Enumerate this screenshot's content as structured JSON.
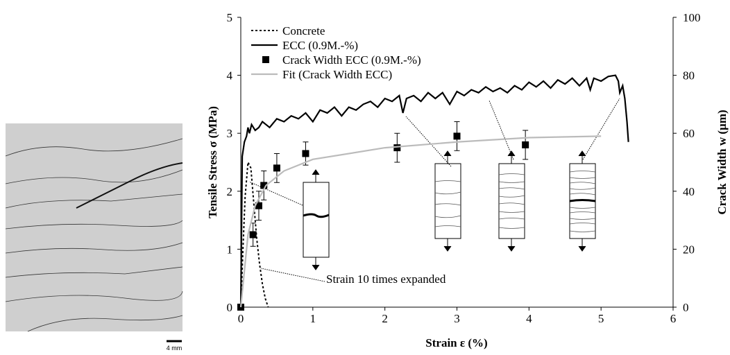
{
  "chart_data": {
    "type": "line",
    "xlabel": "Strain ε (%)",
    "ylabel": "Tensile Stress σ (MPa)",
    "y2label": "Crack Width w (µm)",
    "xlim": [
      0,
      6
    ],
    "xticks": [
      0,
      1,
      2,
      3,
      4,
      5,
      6
    ],
    "ylim": [
      0,
      5
    ],
    "yticks": [
      0,
      1,
      2,
      3,
      4,
      5
    ],
    "y2lim": [
      0,
      100
    ],
    "y2ticks": [
      0,
      20,
      40,
      60,
      80,
      100
    ],
    "legend": "upper left",
    "annotation": "Strain 10 times expanded",
    "scale_bar": "4 mm",
    "series": [
      {
        "name": "Concrete",
        "color": "#000000",
        "style": "dotted",
        "x": [
          0,
          0.03,
          0.06,
          0.1,
          0.14,
          0.18,
          0.22,
          0.26,
          0.3,
          0.34,
          0.38
        ],
        "values": [
          0,
          1.0,
          1.9,
          2.5,
          2.4,
          1.8,
          1.2,
          0.75,
          0.4,
          0.15,
          0
        ]
      },
      {
        "name": "ECC (0.9M.-%)",
        "color": "#000000",
        "style": "solid",
        "x": [
          0,
          0.02,
          0.05,
          0.08,
          0.1,
          0.12,
          0.15,
          0.2,
          0.25,
          0.3,
          0.4,
          0.5,
          0.6,
          0.7,
          0.8,
          0.9,
          1.0,
          1.1,
          1.2,
          1.3,
          1.4,
          1.5,
          1.6,
          1.7,
          1.8,
          1.9,
          2.0,
          2.1,
          2.2,
          2.25,
          2.3,
          2.4,
          2.5,
          2.6,
          2.7,
          2.8,
          2.9,
          3.0,
          3.1,
          3.2,
          3.3,
          3.4,
          3.5,
          3.6,
          3.7,
          3.8,
          3.9,
          4.0,
          4.1,
          4.2,
          4.3,
          4.4,
          4.5,
          4.6,
          4.7,
          4.8,
          4.85,
          4.9,
          5.0,
          5.1,
          5.2,
          5.24,
          5.26,
          5.3,
          5.33,
          5.36,
          5.38
        ],
        "values": [
          0,
          2.6,
          2.85,
          2.95,
          3.1,
          3.0,
          3.15,
          3.05,
          3.1,
          3.2,
          3.1,
          3.25,
          3.2,
          3.3,
          3.25,
          3.35,
          3.2,
          3.4,
          3.35,
          3.45,
          3.3,
          3.45,
          3.4,
          3.5,
          3.55,
          3.45,
          3.6,
          3.55,
          3.65,
          3.35,
          3.6,
          3.65,
          3.55,
          3.7,
          3.6,
          3.7,
          3.5,
          3.72,
          3.65,
          3.75,
          3.7,
          3.8,
          3.72,
          3.78,
          3.7,
          3.82,
          3.75,
          3.88,
          3.8,
          3.9,
          3.78,
          3.92,
          3.85,
          3.95,
          3.82,
          3.95,
          3.75,
          3.95,
          3.9,
          3.98,
          4.0,
          3.9,
          3.7,
          3.82,
          3.6,
          3.2,
          2.85
        ]
      },
      {
        "name": "Crack Width ECC (0.9M.-%)",
        "color": "#000000",
        "style": "marker",
        "axis": "y2",
        "x": [
          0,
          0.17,
          0.25,
          0.32,
          0.5,
          0.9,
          2.17,
          3.0,
          3.95
        ],
        "values": [
          0,
          25,
          35,
          42,
          48,
          53,
          55,
          59,
          56
        ],
        "errors": [
          0,
          4,
          5,
          5,
          5,
          4,
          5,
          5,
          5
        ]
      },
      {
        "name": "Fit (Crack Width ECC)",
        "color": "#bbbbbb",
        "style": "solid",
        "axis": "y2",
        "x": [
          0,
          0.1,
          0.2,
          0.35,
          0.6,
          1,
          2,
          3,
          4,
          5
        ],
        "values": [
          0,
          25,
          35,
          42,
          47,
          51,
          55,
          57,
          58.5,
          59
        ]
      }
    ]
  }
}
